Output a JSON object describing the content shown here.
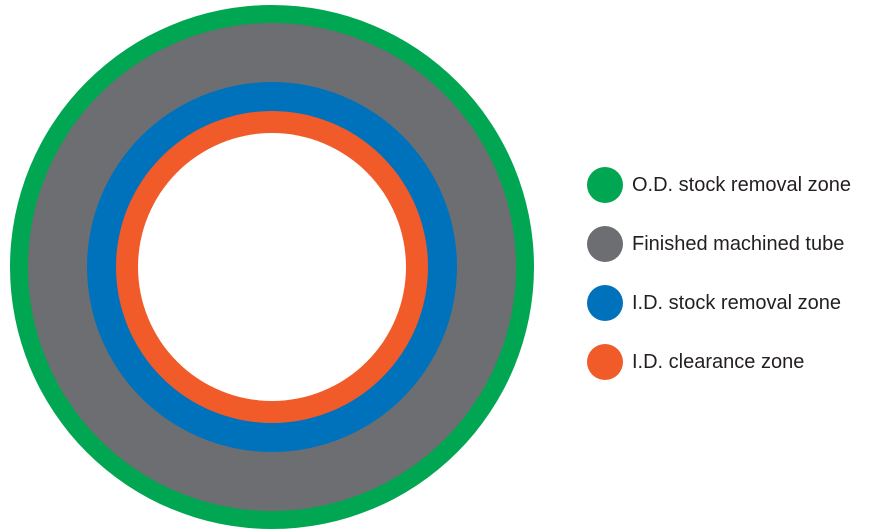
{
  "diagram": {
    "rings": [
      {
        "name": "od-stock-removal-ring",
        "color": "#00a651"
      },
      {
        "name": "finished-machined-tube-ring",
        "color": "#6d6e71"
      },
      {
        "name": "id-stock-removal-ring",
        "color": "#0072bc"
      },
      {
        "name": "id-clearance-ring",
        "color": "#f15a29"
      },
      {
        "name": "bore",
        "color": "#ffffff"
      }
    ]
  },
  "legend": {
    "items": [
      {
        "label": "O.D. stock removal zone",
        "color": "#00a651"
      },
      {
        "label": "Finished machined tube",
        "color": "#6d6e71"
      },
      {
        "label": "I.D. stock removal zone",
        "color": "#0072bc"
      },
      {
        "label": "I.D. clearance zone",
        "color": "#f15a29"
      }
    ]
  }
}
